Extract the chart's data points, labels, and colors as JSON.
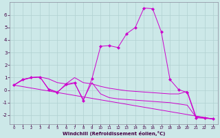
{
  "xlabel": "Windchill (Refroidissement éolien,°C)",
  "background_color": "#cce8e8",
  "line_color": "#cc00cc",
  "marker_color": "#cc00cc",
  "xlim": [
    -0.5,
    23.5
  ],
  "ylim": [
    -2.7,
    7.0
  ],
  "yticks": [
    -2,
    -1,
    0,
    1,
    2,
    3,
    4,
    5,
    6
  ],
  "xticks": [
    0,
    1,
    2,
    3,
    4,
    5,
    6,
    7,
    8,
    9,
    10,
    11,
    12,
    13,
    14,
    15,
    16,
    17,
    18,
    19,
    20,
    21,
    22,
    23
  ],
  "line1_x": [
    0,
    23
  ],
  "line1_y": [
    0.4,
    -2.3
  ],
  "line2_x": [
    0,
    1,
    2,
    3,
    4,
    5,
    6,
    7,
    8,
    9,
    10,
    11,
    12,
    13,
    14,
    15,
    16,
    17,
    18,
    19,
    20,
    21,
    22,
    23
  ],
  "line2_y": [
    0.4,
    0.85,
    1.0,
    1.05,
    0.9,
    0.6,
    0.5,
    1.0,
    0.6,
    0.5,
    0.3,
    0.15,
    0.05,
    -0.05,
    -0.1,
    -0.15,
    -0.2,
    -0.25,
    -0.3,
    -0.3,
    -0.1,
    -2.1,
    -2.2,
    -2.3
  ],
  "line3_x": [
    0,
    1,
    2,
    3,
    4,
    5,
    6,
    7,
    8,
    9,
    10,
    11,
    12,
    13,
    14,
    15,
    16,
    17,
    18,
    19,
    20,
    21,
    22,
    23
  ],
  "line3_y": [
    0.4,
    0.8,
    1.0,
    1.05,
    0.1,
    -0.15,
    0.4,
    0.55,
    -0.75,
    0.6,
    -0.3,
    -0.6,
    -0.7,
    -0.75,
    -0.8,
    -0.85,
    -0.9,
    -0.95,
    -1.0,
    -1.1,
    -1.2,
    -2.15,
    -2.2,
    -2.3
  ],
  "line4_x": [
    0,
    1,
    2,
    3,
    4,
    5,
    6,
    7,
    8,
    9,
    10,
    11,
    12,
    13,
    14,
    15,
    16,
    17,
    18,
    19,
    20,
    21,
    22,
    23
  ],
  "line4_y": [
    0.4,
    0.85,
    1.0,
    1.05,
    0.05,
    -0.2,
    0.5,
    0.6,
    -0.85,
    0.9,
    3.5,
    3.55,
    3.4,
    4.5,
    5.0,
    6.55,
    6.5,
    4.65,
    0.85,
    0.05,
    -0.2,
    -2.2,
    -2.25,
    -2.3
  ],
  "grid_color": "#b0d0d0",
  "tick_color": "#440044",
  "xlabel_color": "#440044"
}
